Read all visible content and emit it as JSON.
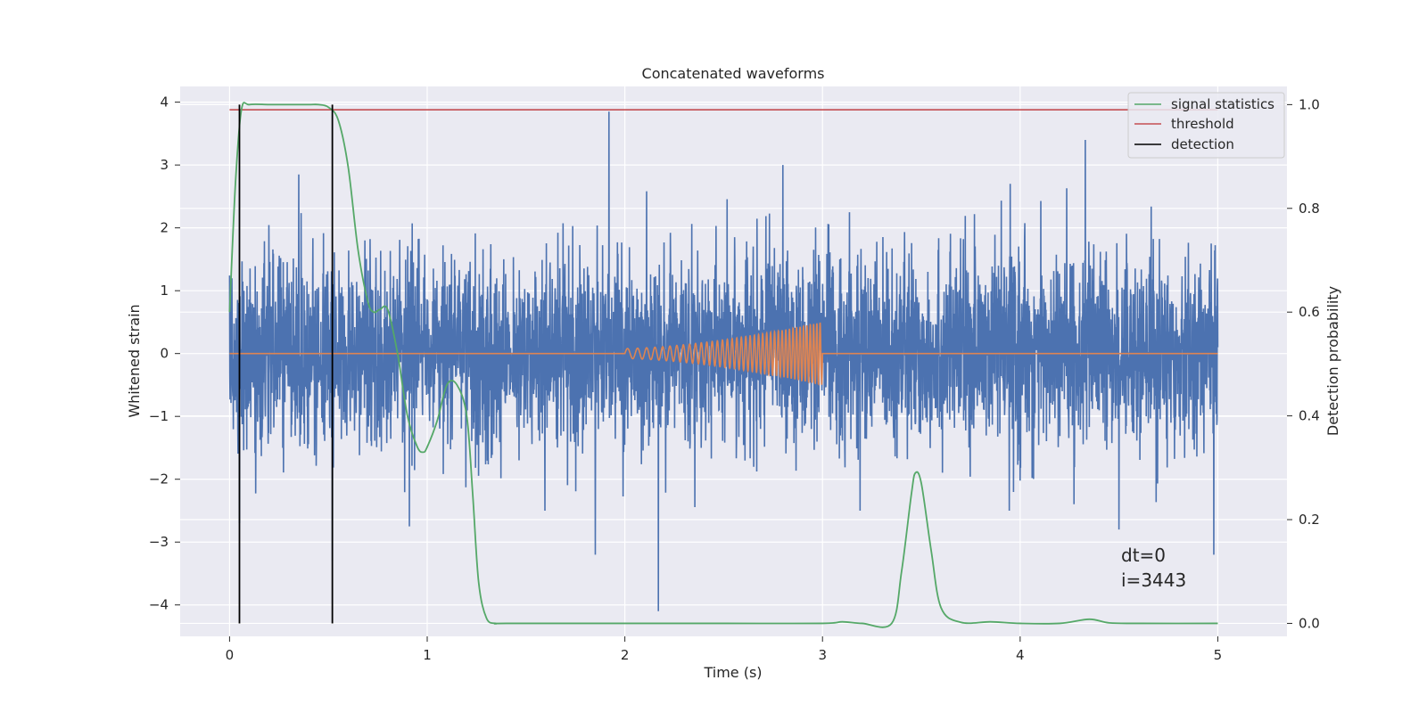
{
  "chart_data": {
    "type": "line",
    "title": "Concatenated waveforms",
    "xlabel": "Time (s)",
    "ylabel_left": "Whitened strain",
    "ylabel_right": "Detection probability",
    "xlim": [
      -0.25,
      5.35
    ],
    "ylim_left": [
      -4.5,
      4.25
    ],
    "ylim_right": [
      -0.025,
      1.035
    ],
    "x_ticks": [
      0,
      1,
      2,
      3,
      4,
      5
    ],
    "y_left_ticks": [
      4,
      3,
      2,
      1,
      0,
      -1,
      -2,
      -3,
      -4
    ],
    "y_right_ticks": [
      1.0,
      0.8,
      0.6,
      0.4,
      0.2,
      0.0
    ],
    "grid": true,
    "style": "seaborn-darkgrid",
    "legend_position": "top-right",
    "colors": {
      "background": "#eaeaf2",
      "grid": "#ffffff",
      "strain": "#4c72b0",
      "waveform": "#dd8452",
      "signal_statistics": "#55a868",
      "threshold": "#c44e52",
      "detection": "#000000"
    },
    "series": [
      {
        "name": "",
        "axis": "left",
        "kind": "noise-strain",
        "x_range": [
          0,
          5
        ],
        "typical_range": [
          -1.6,
          2.0
        ],
        "spikes": [
          {
            "x": 0.05,
            "y": -2.7
          },
          {
            "x": 0.52,
            "y": -3.3
          },
          {
            "x": 1.92,
            "y": 3.85
          },
          {
            "x": 2.17,
            "y": -4.1
          },
          {
            "x": 1.85,
            "y": -3.2
          },
          {
            "x": 4.33,
            "y": 3.4
          },
          {
            "x": 4.98,
            "y": -3.2
          },
          {
            "x": 0.35,
            "y": 2.85
          },
          {
            "x": 2.8,
            "y": 3.0
          },
          {
            "x": 3.95,
            "y": 2.7
          },
          {
            "x": 0.91,
            "y": -2.75
          },
          {
            "x": 4.5,
            "y": -2.8
          }
        ]
      },
      {
        "name": "",
        "axis": "left",
        "kind": "chirp",
        "x_range": [
          2.0,
          3.0
        ],
        "amplitude_start": 0.08,
        "amplitude_end": 0.5
      },
      {
        "name": "signal statistics",
        "axis": "right",
        "x": [
          0,
          0.03,
          0.06,
          0.1,
          0.2,
          0.3,
          0.4,
          0.45,
          0.5,
          0.55,
          0.6,
          0.65,
          0.7,
          0.73,
          0.76,
          0.8,
          0.85,
          0.9,
          0.95,
          0.98,
          1.0,
          1.05,
          1.1,
          1.15,
          1.2,
          1.23,
          1.26,
          1.3,
          1.35,
          1.4,
          2.0,
          2.5,
          3.0,
          3.1,
          3.2,
          3.35,
          3.4,
          3.45,
          3.47,
          3.5,
          3.55,
          3.6,
          3.7,
          3.85,
          4.0,
          4.2,
          4.35,
          4.45,
          4.6,
          5.0
        ],
        "y": [
          0.6,
          0.85,
          0.99,
          1.0,
          1.0,
          1.0,
          1.0,
          1.0,
          0.995,
          0.97,
          0.88,
          0.72,
          0.62,
          0.6,
          0.605,
          0.605,
          0.52,
          0.4,
          0.34,
          0.33,
          0.34,
          0.39,
          0.46,
          0.46,
          0.4,
          0.25,
          0.08,
          0.01,
          0.0,
          0.0,
          0.0,
          0.0,
          0.0,
          0.003,
          0.0,
          0.0,
          0.1,
          0.25,
          0.29,
          0.27,
          0.14,
          0.03,
          0.002,
          0.003,
          0.0,
          0.0,
          0.008,
          0.001,
          0.0,
          0.0
        ]
      },
      {
        "name": "threshold",
        "axis": "right",
        "x": [
          0,
          5
        ],
        "y": [
          0.99,
          0.99
        ]
      },
      {
        "name": "detection",
        "axis": "right",
        "kind": "vertical-lines",
        "x": [
          0.05,
          0.52
        ],
        "y_range": [
          0.0,
          1.0
        ]
      }
    ],
    "annotations": {
      "line1": "dt=0",
      "line2": "i=3443",
      "x": 4.5,
      "y_left": -3.3
    }
  }
}
